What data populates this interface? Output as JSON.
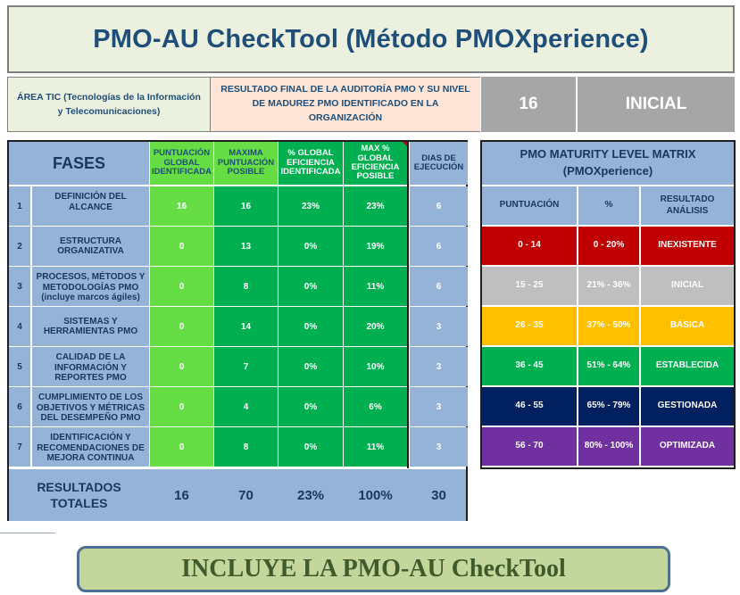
{
  "title": "PMO-AU CheckTool (Método PMOXperience)",
  "area_label": "ÁREA TIC (Tecnologías de la Información y Telecomunicaciones)",
  "result_label": "RESULTADO FINAL DE LA AUDITORÍA PMO Y SU NIVEL DE MADUREZ PMO IDENTIFICADO EN LA ORGANIZACIÓN",
  "final_score": "16",
  "final_level": "INICIAL",
  "phases_table": {
    "headers": {
      "fases": "FASES",
      "global_score": "PUNTUACIÓN GLOBAL IDENTIFICADA",
      "max_score": "MAXIMA PUNTUACIÓN POSIBLE",
      "global_eff": "% GLOBAL EFICIENCIA IDENTIFICADA",
      "max_eff": "MAX % GLOBAL EFICIENCIA POSIBLE",
      "days": "DIAS DE EJECUCIÓN"
    },
    "rows": [
      {
        "num": "1",
        "name": "DEFINICIÓN DEL ALCANCE",
        "score": "16",
        "max": "16",
        "eff": "23%",
        "max_eff": "23%",
        "days": "6"
      },
      {
        "num": "2",
        "name": "ESTRUCTURA ORGANIZATIVA",
        "score": "0",
        "max": "13",
        "eff": "0%",
        "max_eff": "19%",
        "days": "6"
      },
      {
        "num": "3",
        "name": "PROCESOS, MÉTODOS Y METODOLOGÍAS PMO (incluye marcos ágiles)",
        "score": "0",
        "max": "8",
        "eff": "0%",
        "max_eff": "11%",
        "days": "6"
      },
      {
        "num": "4",
        "name": "SISTEMAS Y HERRAMIENTAS PMO",
        "score": "0",
        "max": "14",
        "eff": "0%",
        "max_eff": "20%",
        "days": "3"
      },
      {
        "num": "5",
        "name": "CALIDAD DE LA INFORMACIÓN Y REPORTES PMO",
        "score": "0",
        "max": "7",
        "eff": "0%",
        "max_eff": "10%",
        "days": "3"
      },
      {
        "num": "6",
        "name": "CUMPLIMIENTO DE LOS OBJETIVOS Y MÉTRICAS DEL DESEMPEÑO PMO",
        "score": "0",
        "max": "4",
        "eff": "0%",
        "max_eff": "6%",
        "days": "3"
      },
      {
        "num": "7",
        "name": "IDENTIFICACIÓN Y RECOMENDACIONES DE MEJORA CONTINUA",
        "score": "0",
        "max": "8",
        "eff": "0%",
        "max_eff": "11%",
        "days": "3"
      }
    ],
    "totals": {
      "label": "RESULTADOS TOTALES",
      "score": "16",
      "max": "70",
      "eff": "23%",
      "max_eff": "100%",
      "days": "30"
    }
  },
  "matrix": {
    "title": "PMO MATURITY LEVEL MATRIX (PMOXperience)",
    "headers": [
      "PUNTUACIÓN",
      "%",
      "RESULTADO ANÁLISIS"
    ],
    "rows": [
      {
        "range": "0 - 14",
        "pct": "0 - 20%",
        "level": "INEXISTENTE",
        "bg": "#c00000",
        "fg": "#ffffff"
      },
      {
        "range": "15 - 25",
        "pct": "21% - 36%",
        "level": "INICIAL",
        "bg": "#bfbfbf",
        "fg": "#ffffff"
      },
      {
        "range": "26 - 35",
        "pct": "37% - 50%",
        "level": "BÁSICA",
        "bg": "#ffc000",
        "fg": "#ffffff"
      },
      {
        "range": "36 - 45",
        "pct": "51% - 64%",
        "level": "ESTABLECIDA",
        "bg": "#00b050",
        "fg": "#ffffff"
      },
      {
        "range": "46 - 55",
        "pct": "65% - 79%",
        "level": "GESTIONADA",
        "bg": "#002060",
        "fg": "#ffffff"
      },
      {
        "range": "56 - 70",
        "pct": "80% - 100%",
        "level": "OPTIMIZADA",
        "bg": "#7030a0",
        "fg": "#ffffff"
      }
    ],
    "header_bg": "#95b3d7"
  },
  "banner": "INCLUYE LA PMO-AU CheckTool"
}
